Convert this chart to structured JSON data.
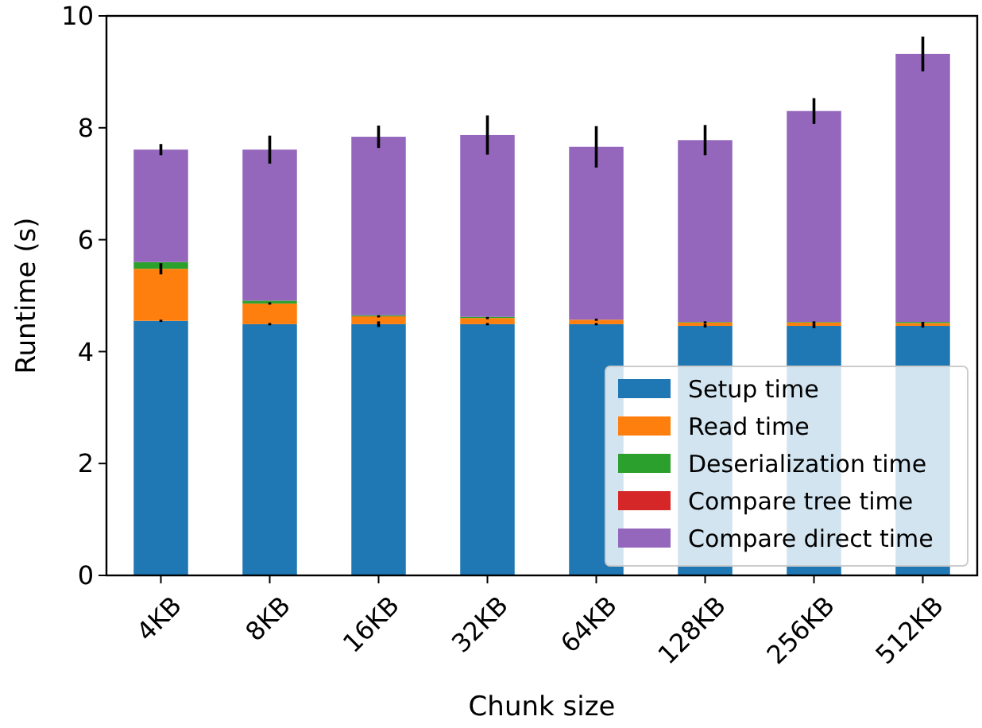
{
  "chart_data": {
    "type": "bar",
    "stacked": true,
    "xlabel": "Chunk size",
    "ylabel": "Runtime (s)",
    "categories": [
      "4KB",
      "8KB",
      "16KB",
      "32KB",
      "64KB",
      "128KB",
      "256KB",
      "512KB"
    ],
    "series": [
      {
        "name": "Setup time",
        "color": "#1f77b4",
        "values": [
          4.55,
          4.49,
          4.49,
          4.49,
          4.49,
          4.46,
          4.46,
          4.46
        ],
        "errors": [
          0.02,
          0.02,
          0.05,
          0.02,
          0.02,
          0.03,
          0.04,
          0.03
        ]
      },
      {
        "name": "Read time",
        "color": "#ff7f0e",
        "values": [
          0.93,
          0.37,
          0.14,
          0.11,
          0.08,
          0.06,
          0.06,
          0.05
        ],
        "errors": [
          0.1,
          0.02,
          0.02,
          0.02,
          0.02,
          0.02,
          0.02,
          0.02
        ]
      },
      {
        "name": "Deserialization time",
        "color": "#2ca02c",
        "values": [
          0.12,
          0.05,
          0.02,
          0.02,
          null,
          0.01,
          0.01,
          0.02
        ]
      },
      {
        "name": "Compare tree time",
        "color": "#d62728",
        "values": [
          0,
          0,
          0,
          0,
          0,
          0,
          0,
          0
        ]
      },
      {
        "name": "Compare direct time",
        "color": "#9467bd",
        "values": [
          2.01,
          2.7,
          3.19,
          3.25,
          3.09,
          3.25,
          3.77,
          4.79
        ],
        "errors": [
          0.1,
          0.25,
          0.2,
          0.35,
          0.37,
          0.27,
          0.23,
          0.31
        ]
      }
    ],
    "ylim": [
      0,
      10
    ],
    "yticks": [
      0,
      2,
      4,
      6,
      8,
      10
    ],
    "grid": false,
    "legend": "bottom right"
  }
}
